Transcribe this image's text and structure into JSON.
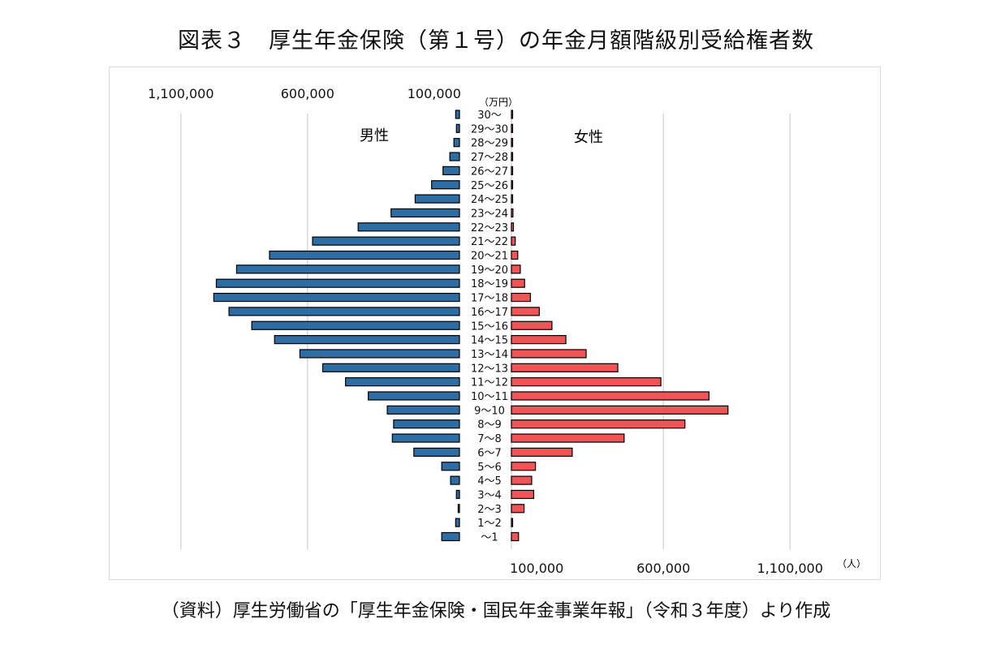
{
  "title": "図表３　厚生年金保険（第１号）の年金月額階級別受給権者数",
  "source": "（資料）厚生労働省の「厚生年金保険・国民年金事業年報」（令和３年度）より作成",
  "colors": {
    "male": "#2e6ca4",
    "female": "#f05456",
    "grid": "#d9d9d9",
    "border": "#000000"
  },
  "chart_data": {
    "type": "bar",
    "orientation": "horizontal-pyramid",
    "categories": [
      "30～",
      "29～30",
      "28～29",
      "27～28",
      "26～27",
      "25～26",
      "24～25",
      "23～24",
      "22～23",
      "21～22",
      "20～21",
      "19～20",
      "18～19",
      "17～18",
      "16～17",
      "15～16",
      "14～15",
      "13～14",
      "12～13",
      "11～12",
      "10～11",
      "9～10",
      "8～9",
      "7～8",
      "6～7",
      "5～6",
      "4～5",
      "3～4",
      "2～3",
      "1～2",
      "～1"
    ],
    "series": [
      {
        "name": "男性",
        "side": "left",
        "values": [
          15000,
          12000,
          22000,
          38000,
          65000,
          110000,
          175000,
          270000,
          400000,
          580000,
          750000,
          880000,
          960000,
          970000,
          910000,
          820000,
          730000,
          630000,
          540000,
          450000,
          360000,
          285000,
          260000,
          265000,
          180000,
          70000,
          35000,
          12000,
          5000,
          15000,
          70000
        ]
      },
      {
        "name": "女性",
        "side": "right",
        "values": [
          2000,
          2000,
          2000,
          2000,
          2000,
          3000,
          3000,
          6000,
          8000,
          15000,
          25000,
          35000,
          52000,
          75000,
          110000,
          160000,
          215000,
          295000,
          420000,
          590000,
          780000,
          855000,
          685000,
          445000,
          240000,
          95000,
          80000,
          88000,
          50000,
          4000,
          28000
        ]
      }
    ],
    "tick_labels_left": [
      "1,100,000",
      "600,000",
      "100,000"
    ],
    "tick_labels_right": [
      "100,000",
      "600,000",
      "1,100,000"
    ],
    "ticks": [
      100000,
      600000,
      1100000
    ],
    "x_unit_label": "（人）",
    "y_unit_label": "（万円）",
    "xlim": [
      0,
      1100000
    ],
    "grid": true
  }
}
